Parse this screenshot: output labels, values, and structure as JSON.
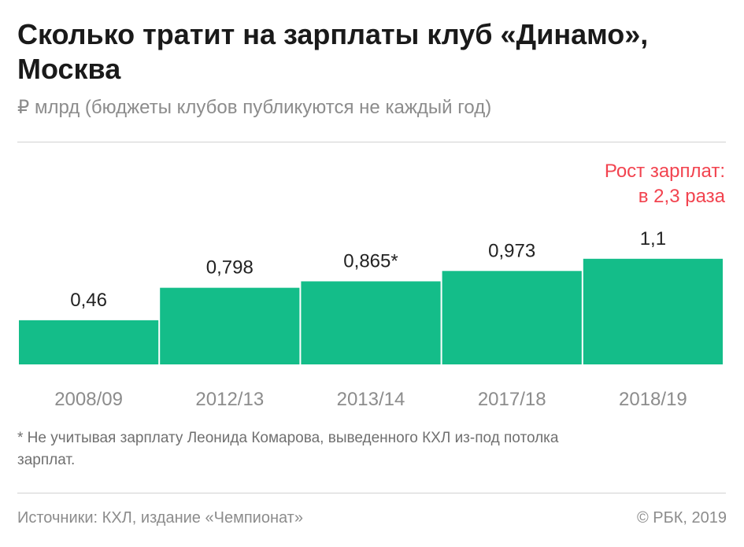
{
  "header": {
    "title": "Сколько тратит на зарплаты клуб «Динамо», Москва",
    "subtitle": "₽ млрд (бюджеты клубов публикуются не каждый год)"
  },
  "annotation": "Рост зарплат: в 2,3 раза",
  "footnote": "* Не учитывая зарплату Леонида Комарова, выведенного КХЛ из-под потолка зарплат.",
  "footer": {
    "source": "Источники: КХЛ, издание «Чемпионат»",
    "copyright": "© РБК, 2019"
  },
  "colors": {
    "bar": "#14bd89",
    "annotation": "#f2434f",
    "value_label": "#222222",
    "category_label": "#8c8c8c"
  },
  "chart_data": {
    "type": "bar",
    "categories": [
      "2008/09",
      "2012/13",
      "2013/14",
      "2017/18",
      "2018/19"
    ],
    "values": [
      0.46,
      0.798,
      0.865,
      0.973,
      1.1
    ],
    "value_labels": [
      "0,46",
      "0,798",
      "0,865*",
      "0,973",
      "1,1"
    ],
    "grid": false,
    "legend": "none"
  }
}
